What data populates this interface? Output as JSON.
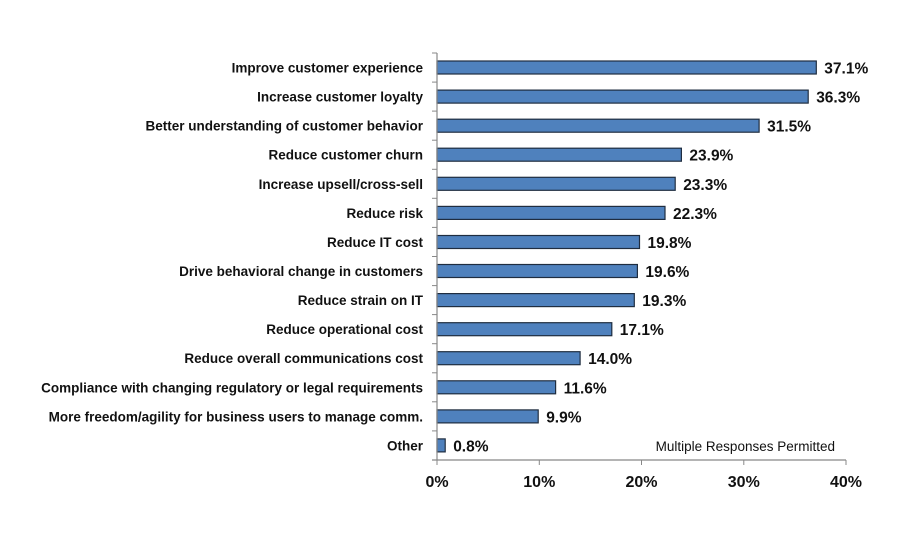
{
  "chart_data": {
    "type": "bar",
    "orientation": "horizontal",
    "title": "",
    "xlabel": "",
    "ylabel": "",
    "xlim": [
      0,
      40
    ],
    "xticks": [
      0,
      10,
      20,
      30,
      40
    ],
    "xtick_labels": [
      "0%",
      "10%",
      "20%",
      "30%",
      "40%"
    ],
    "grid": false,
    "annotation": "Multiple Responses Permitted",
    "bar_color": "#4F81BD",
    "bar_edge_color": "#1F2D40",
    "categories": [
      "Improve customer experience",
      "Increase customer loyalty",
      "Better understanding of customer behavior",
      "Reduce customer churn",
      "Increase upsell/cross-sell",
      "Reduce risk",
      "Reduce IT cost",
      "Drive behavioral change in customers",
      "Reduce strain on IT",
      "Reduce operational cost",
      "Reduce overall communications cost",
      "Compliance with changing regulatory or legal requirements",
      "More freedom/agility for business users to manage comm.",
      "Other"
    ],
    "values": [
      37.1,
      36.3,
      31.5,
      23.9,
      23.3,
      22.3,
      19.8,
      19.6,
      19.3,
      17.1,
      14.0,
      11.6,
      9.9,
      0.8
    ],
    "value_labels": [
      "37.1%",
      "36.3%",
      "31.5%",
      "23.9%",
      "23.3%",
      "22.3%",
      "19.8%",
      "19.6%",
      "19.3%",
      "17.1%",
      "14.0%",
      "11.6%",
      "9.9%",
      "0.8%"
    ]
  }
}
